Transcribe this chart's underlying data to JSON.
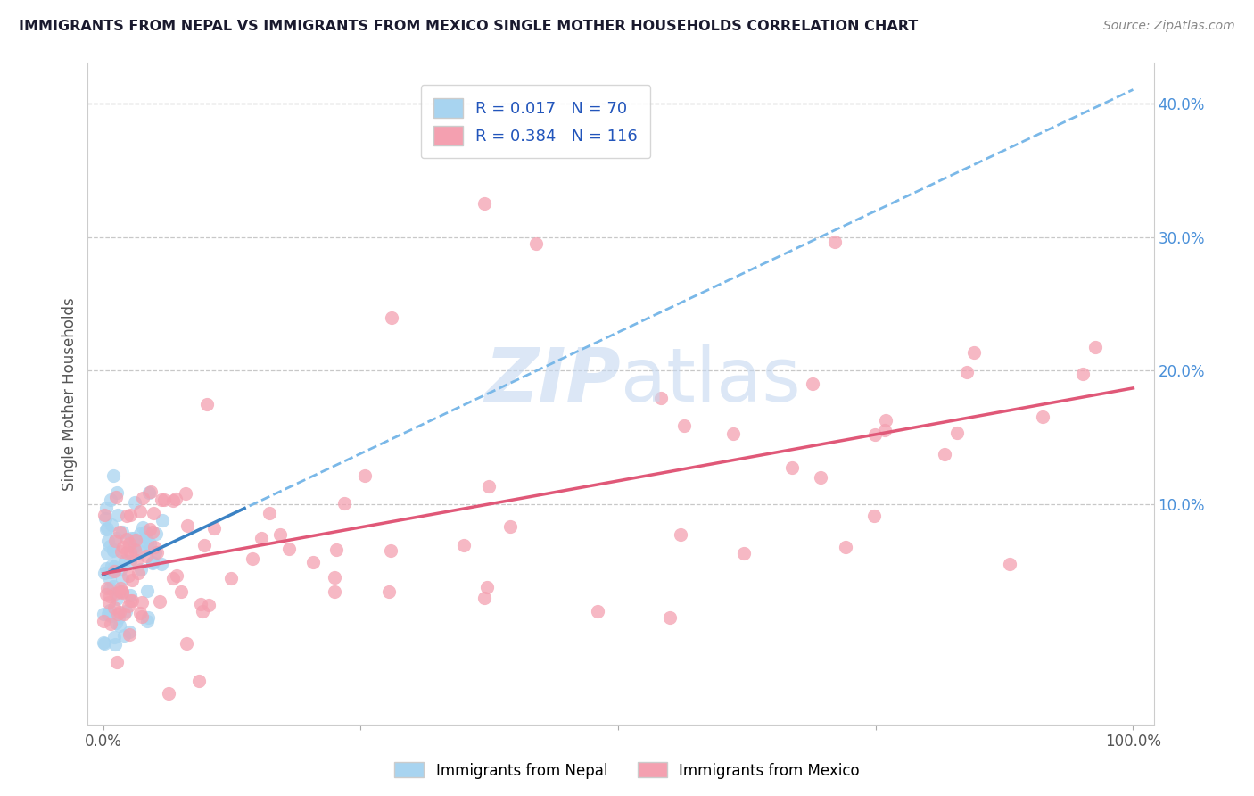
{
  "title": "IMMIGRANTS FROM NEPAL VS IMMIGRANTS FROM MEXICO SINGLE MOTHER HOUSEHOLDS CORRELATION CHART",
  "source": "Source: ZipAtlas.com",
  "ylabel": "Single Mother Households",
  "nepal_R": 0.017,
  "nepal_N": 70,
  "mexico_R": 0.384,
  "mexico_N": 116,
  "nepal_color": "#a8d4f0",
  "mexico_color": "#f4a0b0",
  "nepal_line_color": "#3b82c4",
  "mexico_line_color": "#e05878",
  "nepal_dash_color": "#7ab8e8",
  "background_color": "#ffffff",
  "grid_color": "#c8c8c8",
  "title_color": "#1a1a2e",
  "axis_label_color": "#4a90d9",
  "watermark_color": "#c5d8f0",
  "legend_text_color": "#2255bb",
  "legend_label_nepal": "Immigrants from Nepal",
  "legend_label_mexico": "Immigrants from Mexico"
}
